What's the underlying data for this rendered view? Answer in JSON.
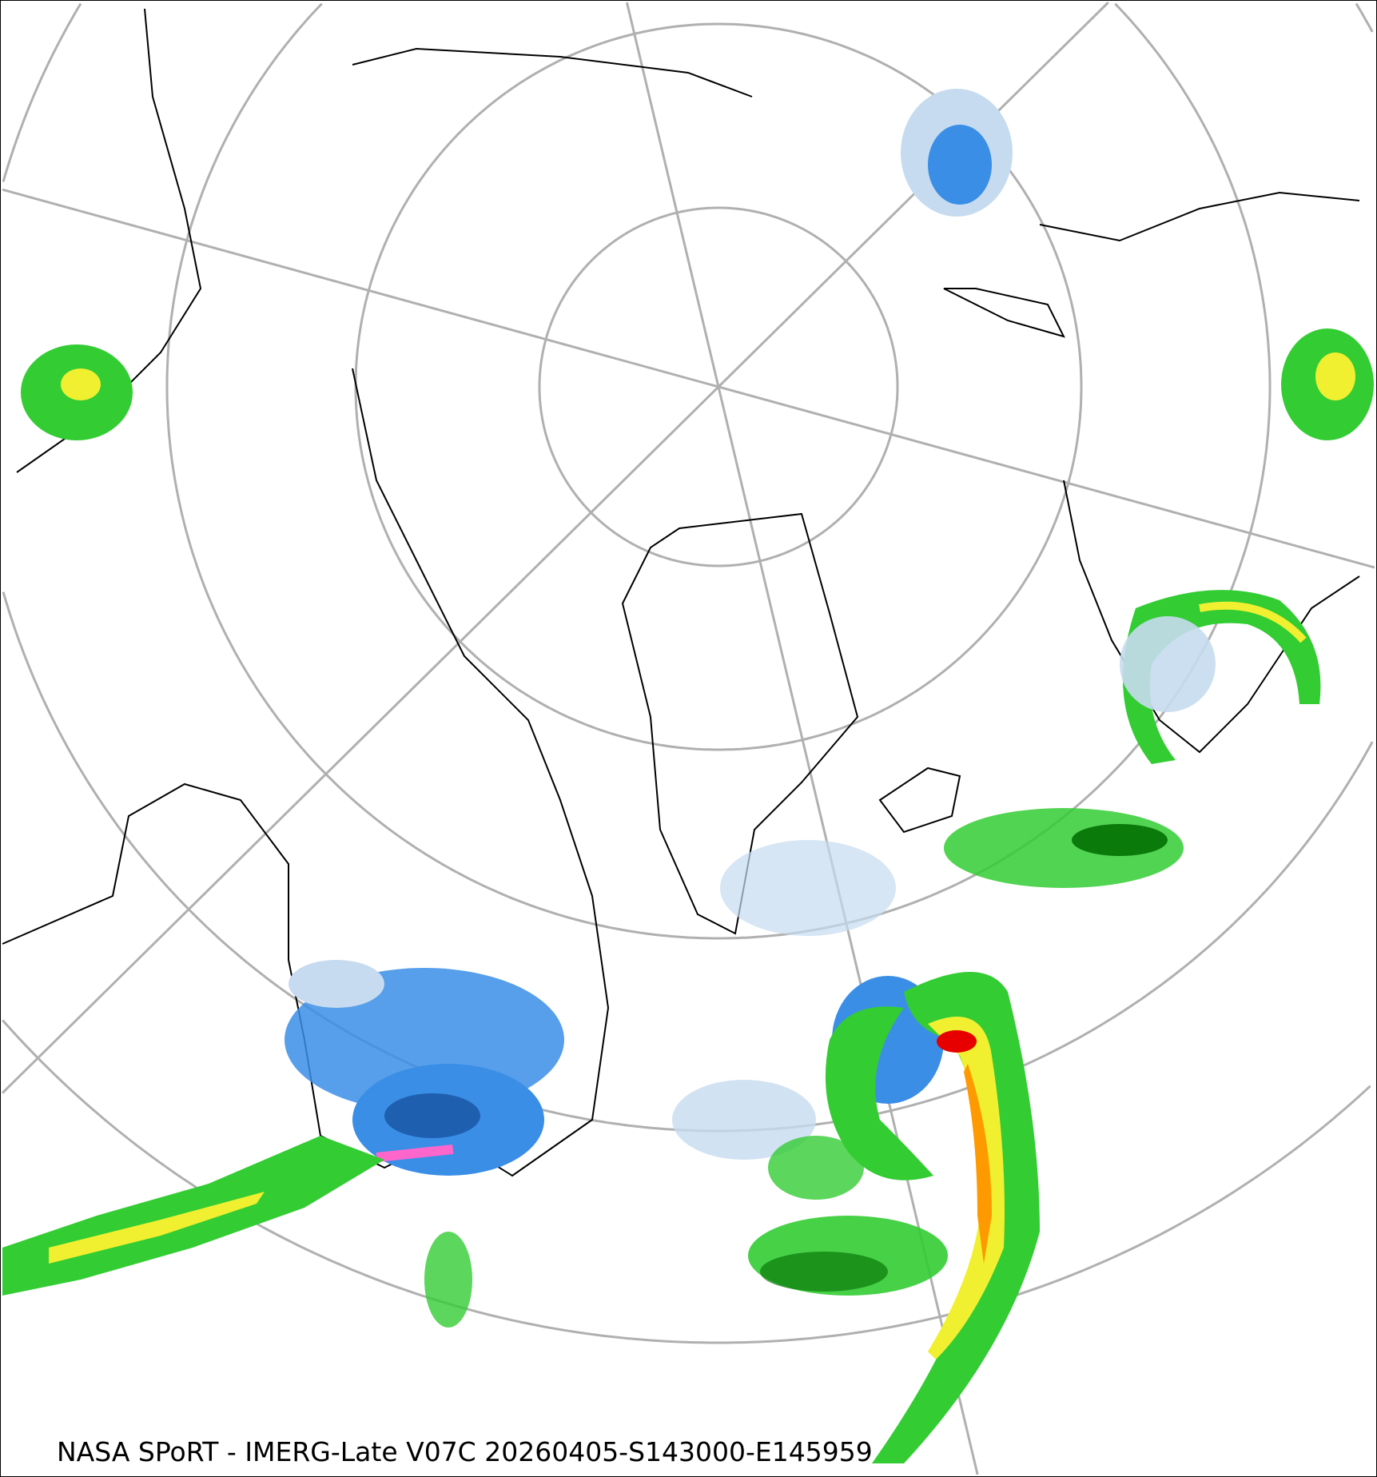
{
  "caption": "NASA SPoRT - IMERG-Late V07C 20260405-S143000-E145959",
  "projection": "north-polar-stereographic",
  "colors": {
    "graticule": "#b0b0b0",
    "coastline": "#000000",
    "precip_light_blue": "#c6dbef",
    "precip_blue": "#3a8ee6",
    "precip_dark_blue": "#1f5fb0",
    "precip_green": "#33cc33",
    "precip_dark_green": "#0a7a0a",
    "precip_yellow": "#f0f030",
    "precip_orange": "#ff9900",
    "precip_red": "#e60000",
    "precip_pink": "#ff66cc"
  }
}
